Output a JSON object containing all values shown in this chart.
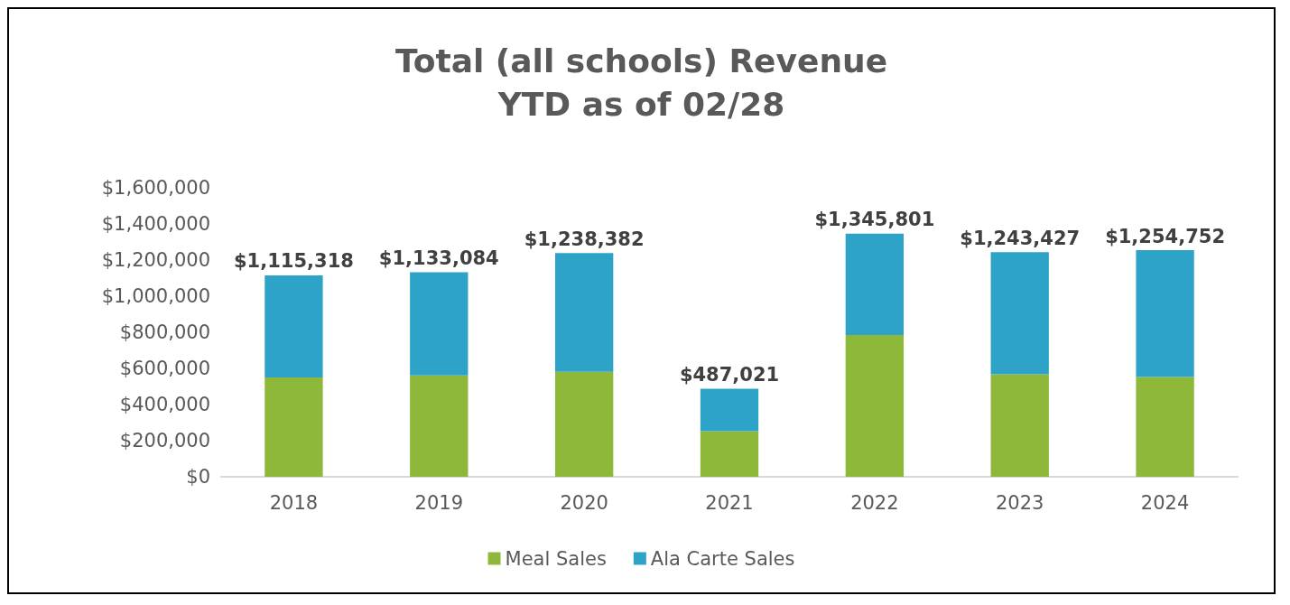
{
  "chart_data": {
    "type": "bar",
    "title": "Total (all schools) Revenue\nYTD as of 02/28",
    "categories": [
      "2018",
      "2019",
      "2020",
      "2021",
      "2022",
      "2023",
      "2024"
    ],
    "series": [
      {
        "name": "Meal Sales",
        "color": "#8db83a",
        "values": [
          550000,
          561000,
          581000,
          253000,
          785000,
          567000,
          553000
        ]
      },
      {
        "name": "Ala Carte Sales",
        "color": "#2ea3c8",
        "values": [
          565318,
          572084,
          657382,
          234021,
          560801,
          676427,
          701752
        ]
      }
    ],
    "stacked": true,
    "totals": [
      "$1,115,318",
      "$1,133,084",
      "$1,238,382",
      "$487,021",
      "$1,345,801",
      "$1,243,427",
      "$1,254,752"
    ],
    "ylim": [
      0,
      1600000
    ],
    "yticks": [
      {
        "value": 0,
        "label": "$0"
      },
      {
        "value": 200000,
        "label": "$200,000"
      },
      {
        "value": 400000,
        "label": "$400,000"
      },
      {
        "value": 600000,
        "label": "$600,000"
      },
      {
        "value": 800000,
        "label": "$800,000"
      },
      {
        "value": 1000000,
        "label": "$1,000,000"
      },
      {
        "value": 1200000,
        "label": "$1,200,000"
      },
      {
        "value": 1400000,
        "label": "$1,400,000"
      },
      {
        "value": 1600000,
        "label": "$1,600,000"
      }
    ],
    "legend": "bottom"
  }
}
